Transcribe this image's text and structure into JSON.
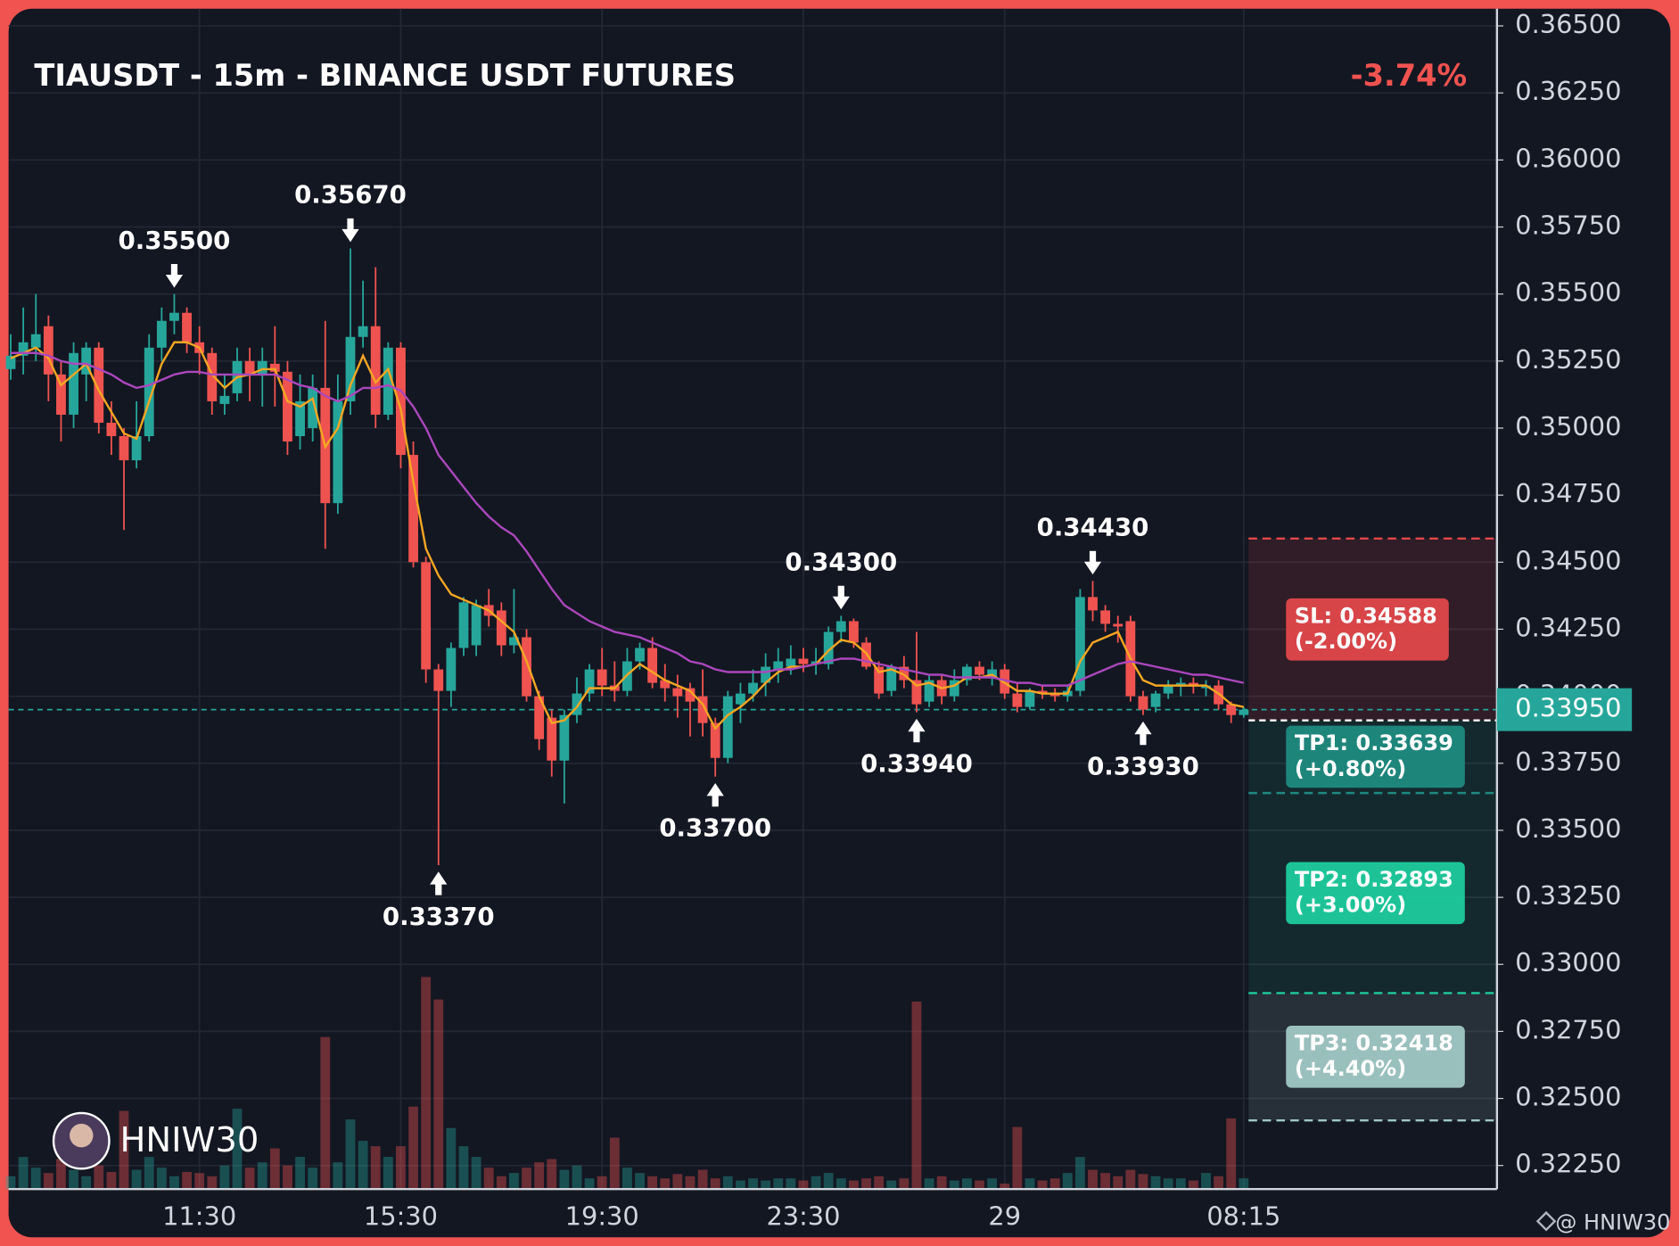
{
  "chart_data": {
    "type": "candlestick",
    "title": "TIAUSDT - 15m - BINANCE USDT FUTURES",
    "change": "-3.74%",
    "up_color": "#26a69a",
    "down_color": "#ef5350",
    "grid": true,
    "categories": [
      null,
      null,
      null,
      null,
      null,
      null,
      null,
      null,
      null,
      null,
      null,
      null,
      null,
      null,
      null,
      "11:30",
      null,
      null,
      null,
      null,
      null,
      null,
      null,
      null,
      null,
      null,
      null,
      null,
      null,
      null,
      null,
      "15:30",
      null,
      null,
      null,
      null,
      null,
      null,
      null,
      null,
      null,
      null,
      null,
      null,
      null,
      null,
      null,
      "19:30",
      null,
      null,
      null,
      null,
      null,
      null,
      null,
      null,
      null,
      null,
      null,
      null,
      null,
      null,
      null,
      "23:30",
      null,
      null,
      null,
      null,
      null,
      null,
      null,
      null,
      null,
      null,
      null,
      null,
      null,
      null,
      null,
      "29",
      null,
      null,
      null,
      null,
      null,
      null,
      null,
      null,
      null,
      null,
      null,
      null,
      null,
      null,
      null,
      null,
      null,
      null,
      "08:15"
    ],
    "open": [
      0.3522,
      0.3527,
      0.353,
      0.3538,
      0.352,
      0.3505,
      0.352,
      0.353,
      0.3502,
      0.3497,
      0.3488,
      0.3497,
      0.353,
      0.354,
      0.3543,
      0.3532,
      0.3528,
      0.3509,
      0.3513,
      0.3525,
      0.352,
      0.3524,
      0.3521,
      0.3497,
      0.35,
      0.3515,
      0.3472,
      0.351,
      0.3534,
      0.3538,
      0.3505,
      0.353,
      0.349,
      0.345,
      0.341,
      0.3402,
      0.3418,
      0.3419,
      0.3434,
      0.3432,
      0.3419,
      0.3422,
      0.34,
      0.3392,
      0.3376,
      0.3393,
      0.3401,
      0.341,
      0.3404,
      0.3402,
      0.3413,
      0.3418,
      0.3406,
      0.3403,
      0.3403,
      0.34,
      0.339,
      0.3377,
      0.3397,
      0.3401,
      0.3405,
      0.341,
      0.3411,
      0.3414,
      0.3412,
      0.3412,
      0.3424,
      0.3428,
      0.342,
      0.3411,
      0.3402,
      0.3411,
      0.3406,
      0.3398,
      0.3406,
      0.34,
      0.3406,
      0.3411,
      0.3407,
      0.341,
      0.3401,
      0.3396,
      0.3402,
      0.3401,
      0.34,
      0.3402,
      0.3437,
      0.3432,
      0.3427,
      0.3428,
      0.34,
      0.3396,
      0.3401,
      0.3404,
      0.3405,
      0.3403,
      0.3404,
      0.3397,
      0.3393
    ],
    "high": [
      0.3535,
      0.3545,
      0.355,
      0.3542,
      0.3525,
      0.3532,
      0.3532,
      0.3532,
      0.351,
      0.35,
      0.351,
      0.3535,
      0.3545,
      0.355,
      0.3545,
      0.3538,
      0.353,
      0.352,
      0.353,
      0.353,
      0.353,
      0.3538,
      0.3525,
      0.352,
      0.352,
      0.354,
      0.352,
      0.3567,
      0.3555,
      0.356,
      0.3532,
      0.3532,
      0.3495,
      0.3452,
      0.3412,
      0.342,
      0.3437,
      0.3436,
      0.344,
      0.3435,
      0.344,
      0.3425,
      0.3402,
      0.3395,
      0.3395,
      0.3407,
      0.3412,
      0.3418,
      0.3413,
      0.3418,
      0.342,
      0.3422,
      0.3412,
      0.3408,
      0.3405,
      0.341,
      0.3392,
      0.3402,
      0.3405,
      0.341,
      0.3416,
      0.3418,
      0.3419,
      0.3418,
      0.3418,
      0.3426,
      0.343,
      0.3429,
      0.3422,
      0.3413,
      0.3412,
      0.3415,
      0.3424,
      0.3408,
      0.3408,
      0.341,
      0.3412,
      0.3413,
      0.3413,
      0.3412,
      0.3405,
      0.3403,
      0.3404,
      0.3403,
      0.3404,
      0.344,
      0.3443,
      0.3434,
      0.343,
      0.343,
      0.3402,
      0.3402,
      0.3406,
      0.3407,
      0.3407,
      0.3406,
      0.3406,
      0.3398,
      0.3396
    ],
    "low": [
      0.3518,
      0.352,
      0.3525,
      0.351,
      0.3495,
      0.35,
      0.351,
      0.3498,
      0.349,
      0.3462,
      0.3485,
      0.3495,
      0.3525,
      0.3535,
      0.3528,
      0.352,
      0.3505,
      0.3505,
      0.351,
      0.351,
      0.3508,
      0.3508,
      0.349,
      0.3492,
      0.3495,
      0.3455,
      0.3468,
      0.3505,
      0.353,
      0.35,
      0.3503,
      0.3485,
      0.3448,
      0.3405,
      0.3337,
      0.3396,
      0.3415,
      0.3415,
      0.3426,
      0.3415,
      0.3416,
      0.3398,
      0.338,
      0.337,
      0.336,
      0.339,
      0.3398,
      0.34,
      0.3398,
      0.34,
      0.341,
      0.3403,
      0.3398,
      0.3392,
      0.3385,
      0.3385,
      0.337,
      0.3375,
      0.339,
      0.3398,
      0.34,
      0.3405,
      0.3408,
      0.3409,
      0.3408,
      0.341,
      0.342,
      0.3418,
      0.341,
      0.3399,
      0.34,
      0.3403,
      0.3394,
      0.3396,
      0.3397,
      0.3398,
      0.3404,
      0.3406,
      0.3404,
      0.3399,
      0.3394,
      0.3395,
      0.3399,
      0.3398,
      0.3398,
      0.34,
      0.3428,
      0.3424,
      0.342,
      0.3398,
      0.3393,
      0.3394,
      0.3399,
      0.34,
      0.3401,
      0.34,
      0.3395,
      0.339,
      0.3392
    ],
    "close": [
      0.3527,
      0.3532,
      0.3535,
      0.352,
      0.3505,
      0.3528,
      0.353,
      0.3502,
      0.3497,
      0.3488,
      0.3497,
      0.353,
      0.354,
      0.3543,
      0.3532,
      0.3528,
      0.351,
      0.3512,
      0.3525,
      0.352,
      0.3525,
      0.3521,
      0.3495,
      0.351,
      0.3515,
      0.3472,
      0.351,
      0.3534,
      0.3538,
      0.3505,
      0.353,
      0.349,
      0.345,
      0.341,
      0.3402,
      0.3418,
      0.3435,
      0.3434,
      0.343,
      0.3419,
      0.3422,
      0.34,
      0.3384,
      0.3376,
      0.3393,
      0.3401,
      0.341,
      0.3404,
      0.3402,
      0.3413,
      0.3418,
      0.3405,
      0.3403,
      0.34,
      0.3398,
      0.339,
      0.3377,
      0.34,
      0.3401,
      0.3405,
      0.3411,
      0.3413,
      0.3414,
      0.3412,
      0.3413,
      0.3424,
      0.3428,
      0.342,
      0.3411,
      0.3401,
      0.3411,
      0.3406,
      0.3397,
      0.3406,
      0.34,
      0.3406,
      0.3411,
      0.3408,
      0.341,
      0.3401,
      0.3396,
      0.3402,
      0.3401,
      0.34,
      0.3402,
      0.3437,
      0.3432,
      0.3427,
      0.3426,
      0.34,
      0.3395,
      0.3401,
      0.3404,
      0.3405,
      0.3404,
      0.3404,
      0.3397,
      0.3393,
      0.3395
    ],
    "volume": [
      12,
      30,
      20,
      15,
      28,
      18,
      12,
      22,
      16,
      73,
      18,
      30,
      20,
      12,
      16,
      15,
      12,
      22,
      75,
      20,
      25,
      38,
      22,
      30,
      20,
      142,
      25,
      65,
      45,
      40,
      30,
      40,
      77,
      198,
      177,
      57,
      40,
      30,
      20,
      12,
      15,
      20,
      25,
      28,
      18,
      22,
      10,
      12,
      48,
      20,
      15,
      12,
      10,
      14,
      12,
      18,
      10,
      12,
      8,
      10,
      8,
      10,
      10,
      8,
      12,
      15,
      10,
      8,
      10,
      12,
      8,
      10,
      175,
      10,
      12,
      8,
      10,
      8,
      10,
      5,
      58,
      10,
      8,
      10,
      15,
      30,
      18,
      15,
      12,
      18,
      14,
      12,
      10,
      10,
      8,
      15,
      12,
      66,
      10
    ],
    "ma": [
      {
        "color": "#f5a623",
        "values": [
          0.3526,
          0.3528,
          0.353,
          0.3526,
          0.3516,
          0.352,
          0.3524,
          0.3514,
          0.3506,
          0.3498,
          0.3496,
          0.351,
          0.3524,
          0.3532,
          0.3532,
          0.353,
          0.352,
          0.3515,
          0.3519,
          0.352,
          0.3522,
          0.3522,
          0.351,
          0.3508,
          0.3511,
          0.3493,
          0.35,
          0.3516,
          0.3527,
          0.3517,
          0.3522,
          0.3507,
          0.348,
          0.3455,
          0.3445,
          0.3438,
          0.3436,
          0.3434,
          0.3432,
          0.3428,
          0.3424,
          0.3413,
          0.34,
          0.339,
          0.3391,
          0.3396,
          0.3403,
          0.3403,
          0.3403,
          0.3408,
          0.3412,
          0.3409,
          0.3406,
          0.3404,
          0.3402,
          0.3397,
          0.3388,
          0.3393,
          0.3396,
          0.34,
          0.3405,
          0.3409,
          0.3411,
          0.3411,
          0.3412,
          0.3417,
          0.3421,
          0.342,
          0.3416,
          0.3409,
          0.341,
          0.3408,
          0.3404,
          0.3405,
          0.3403,
          0.3404,
          0.3407,
          0.3407,
          0.3408,
          0.3405,
          0.3402,
          0.3402,
          0.3401,
          0.3401,
          0.3401,
          0.3413,
          0.342,
          0.3422,
          0.3424,
          0.3414,
          0.3406,
          0.3404,
          0.3404,
          0.3404,
          0.3404,
          0.3404,
          0.3401,
          0.3397,
          0.3396
        ]
      },
      {
        "color": "#ab47bc",
        "values": [
          0.3528,
          0.3528,
          0.3528,
          0.3527,
          0.3525,
          0.3524,
          0.3524,
          0.3522,
          0.352,
          0.3517,
          0.3515,
          0.3516,
          0.3518,
          0.352,
          0.3521,
          0.3521,
          0.352,
          0.352,
          0.352,
          0.352,
          0.352,
          0.352,
          0.3518,
          0.3516,
          0.3515,
          0.3512,
          0.351,
          0.3512,
          0.3515,
          0.3515,
          0.3516,
          0.3514,
          0.3508,
          0.35,
          0.349,
          0.3484,
          0.3478,
          0.3472,
          0.3467,
          0.3463,
          0.346,
          0.3454,
          0.3447,
          0.344,
          0.3434,
          0.3431,
          0.3428,
          0.3426,
          0.3424,
          0.3423,
          0.3422,
          0.342,
          0.3418,
          0.3416,
          0.3413,
          0.3412,
          0.341,
          0.3409,
          0.3409,
          0.3409,
          0.3409,
          0.341,
          0.341,
          0.3411,
          0.3412,
          0.3413,
          0.3414,
          0.3414,
          0.3413,
          0.3412,
          0.3411,
          0.341,
          0.3409,
          0.3408,
          0.3408,
          0.3407,
          0.3407,
          0.3407,
          0.3407,
          0.3406,
          0.3405,
          0.3405,
          0.3404,
          0.3404,
          0.3404,
          0.3406,
          0.3408,
          0.341,
          0.3412,
          0.3413,
          0.3412,
          0.3411,
          0.341,
          0.3409,
          0.3408,
          0.3408,
          0.3407,
          0.3406,
          0.3405
        ]
      }
    ],
    "ylim": [
      0.32162,
      0.36564
    ],
    "yticks": [
      {
        "value": 0.365,
        "label": "0.36500"
      },
      {
        "value": 0.3625,
        "label": "0.36250"
      },
      {
        "value": 0.36,
        "label": "0.36000"
      },
      {
        "value": 0.3575,
        "label": "0.35750"
      },
      {
        "value": 0.355,
        "label": "0.35500"
      },
      {
        "value": 0.3525,
        "label": "0.35250"
      },
      {
        "value": 0.35,
        "label": "0.35000"
      },
      {
        "value": 0.3475,
        "label": "0.34750"
      },
      {
        "value": 0.345,
        "label": "0.34500"
      },
      {
        "value": 0.3425,
        "label": "0.34250"
      },
      {
        "value": 0.34,
        "label": "0.34000"
      },
      {
        "value": 0.3375,
        "label": "0.33750"
      },
      {
        "value": 0.335,
        "label": "0.33500"
      },
      {
        "value": 0.3325,
        "label": "0.33250"
      },
      {
        "value": 0.33,
        "label": "0.33000"
      },
      {
        "value": 0.3275,
        "label": "0.32750"
      },
      {
        "value": 0.325,
        "label": "0.32500"
      },
      {
        "value": 0.3225,
        "label": "0.32250"
      }
    ],
    "last_price": {
      "value": 0.3395,
      "label": "0.33950"
    },
    "annotations": [
      {
        "candle": 13,
        "side": "high",
        "value": 0.355,
        "label": "0.35500"
      },
      {
        "candle": 27,
        "side": "high",
        "value": 0.3567,
        "label": "0.35670"
      },
      {
        "candle": 34,
        "side": "low",
        "value": 0.3337,
        "label": "0.33370"
      },
      {
        "candle": 56,
        "side": "low",
        "value": 0.337,
        "label": "0.33700"
      },
      {
        "candle": 66,
        "side": "high",
        "value": 0.343,
        "label": "0.34300"
      },
      {
        "candle": 72,
        "side": "low",
        "value": 0.3394,
        "label": "0.33940"
      },
      {
        "candle": 86,
        "side": "high",
        "value": 0.3443,
        "label": "0.34430"
      },
      {
        "candle": 90,
        "side": "low",
        "value": 0.3393,
        "label": "0.33930"
      }
    ],
    "position": {
      "entry": 0.3391,
      "levels": [
        {
          "label": "SL: 0.34588",
          "change": "(-2.00%)",
          "value": 0.34588,
          "color": "#e0484a"
        },
        {
          "label": "TP1: 0.33639",
          "change": "(+0.80%)",
          "value": 0.33639,
          "color": "#1f8a80"
        },
        {
          "label": "TP2: 0.32893",
          "change": "(+3.00%)",
          "value": 0.32893,
          "color": "#1ecb9d"
        },
        {
          "label": "TP3: 0.32418",
          "change": "(+4.40%)",
          "value": 0.32418,
          "color": "#a0c8c4"
        }
      ]
    },
    "watermark": "HNIW30",
    "credit": "@ HNIW30"
  }
}
